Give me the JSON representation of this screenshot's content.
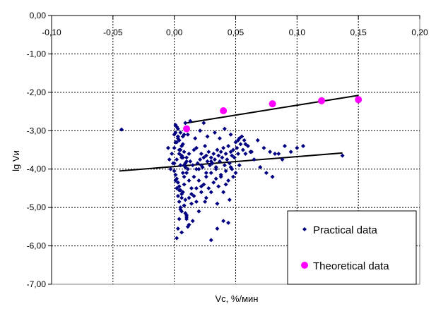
{
  "chart_data": {
    "type": "scatter",
    "xlabel": "Vc, %/мин",
    "ylabel": "lg Vи",
    "xlim": [
      -0.1,
      0.2
    ],
    "ylim": [
      -7.0,
      0.0
    ],
    "x_ticks": [
      -0.1,
      -0.05,
      0.0,
      0.05,
      0.1,
      0.15,
      0.2
    ],
    "y_ticks": [
      0.0,
      -1.0,
      -2.0,
      -3.0,
      -4.0,
      -5.0,
      -6.0,
      -7.0
    ],
    "x_tick_labels": [
      "-0,10",
      "-0,05",
      "0,00",
      "0,05",
      "0,10",
      "0,15",
      "0,20"
    ],
    "y_tick_labels": [
      "0,00",
      "-1,00",
      "-2,00",
      "-3,00",
      "-4,00",
      "-5,00",
      "-6,00",
      "-7,00"
    ],
    "grid": true,
    "legend_position": "bottom-right",
    "series": [
      {
        "name": "Practical data",
        "marker": "diamond",
        "color": "#000080",
        "x": [
          -0.043,
          0.0,
          0.0,
          0.001,
          0.002,
          0.003,
          0.004,
          0.005,
          0.006,
          0.007,
          0.008,
          0.009,
          0.01,
          0.001,
          0.002,
          0.003,
          0.004,
          0.005,
          0.006,
          0.007,
          0.008,
          0.009,
          0.0,
          0.001,
          0.002,
          0.003,
          0.004,
          0.005,
          0.006,
          0.007,
          0.008,
          0.01,
          0.011,
          0.012,
          0.013,
          0.015,
          0.016,
          0.018,
          0.019,
          0.02,
          0.021,
          0.022,
          0.023,
          0.024,
          0.025,
          0.026,
          0.027,
          0.028,
          0.029,
          0.03,
          0.031,
          0.032,
          0.033,
          0.034,
          0.035,
          0.036,
          0.037,
          0.038,
          0.039,
          0.04,
          0.041,
          0.042,
          0.043,
          0.044,
          0.045,
          0.046,
          0.047,
          0.048,
          0.049,
          0.05,
          0.051,
          0.052,
          0.053,
          0.054,
          0.055,
          0.056,
          0.057,
          0.058,
          0.06,
          0.062,
          0.065,
          0.07,
          0.075,
          0.08,
          0.085,
          0.09,
          0.095,
          0.1,
          0.105,
          0.137,
          -0.005,
          -0.004,
          -0.003,
          -0.002,
          -0.001,
          0.001,
          0.002,
          0.003,
          0.004,
          0.005,
          0.006,
          0.007,
          0.008,
          0.009,
          0.01,
          0.012,
          0.014,
          0.016,
          0.018,
          0.02,
          0.022,
          0.024,
          0.026,
          0.028,
          0.03,
          0.032,
          0.034,
          0.036,
          0.038,
          0.04,
          0.042,
          0.044,
          0.046,
          0.048,
          0.05,
          0.002,
          0.003,
          0.004,
          0.005,
          0.006,
          0.008,
          0.01,
          0.012,
          0.015,
          0.02,
          0.025,
          0.03,
          0.035,
          0.04,
          0.045,
          0.001,
          0.003,
          0.005,
          0.007,
          0.009,
          0.011,
          0.013,
          0.017,
          0.021,
          0.024,
          0.027,
          0.033,
          0.037,
          0.041,
          0.046,
          0.052,
          0.058,
          0.063,
          0.068,
          0.073,
          0.078,
          0.082,
          0.088,
          0.0,
          0.002,
          0.004,
          0.006,
          0.008,
          0.01,
          0.012,
          0.014,
          0.016,
          0.018,
          0.022,
          0.026,
          0.03,
          0.034,
          0.038,
          0.042,
          0.047,
          0.053,
          0.004,
          0.006,
          0.008,
          0.009,
          0.01,
          0.011,
          0.014,
          0.018,
          0.022,
          0.026,
          0.03,
          0.035,
          0.044
        ],
        "y": [
          -2.97,
          -3.45,
          -3.85,
          -3.3,
          -3.75,
          -3.2,
          -3.6,
          -3.9,
          -3.4,
          -3.7,
          -3.55,
          -3.95,
          -3.8,
          -3.05,
          -2.9,
          -3.15,
          -3.25,
          -3.5,
          -3.65,
          -3.35,
          -3.1,
          -3.85,
          -4.05,
          -4.15,
          -4.25,
          -4.35,
          -4.45,
          -4.55,
          -4.65,
          -4.1,
          -4.2,
          -3.7,
          -4.0,
          -3.6,
          -3.8,
          -3.9,
          -3.5,
          -3.45,
          -3.85,
          -4.0,
          -3.75,
          -3.6,
          -3.95,
          -3.7,
          -3.4,
          -3.65,
          -3.8,
          -3.55,
          -3.9,
          -3.7,
          -3.85,
          -3.6,
          -3.75,
          -3.95,
          -3.5,
          -3.65,
          -3.8,
          -3.55,
          -3.7,
          -3.45,
          -3.9,
          -3.6,
          -3.75,
          -3.4,
          -3.85,
          -3.55,
          -3.65,
          -3.5,
          -3.7,
          -3.3,
          -3.45,
          -3.6,
          -3.2,
          -3.35,
          -3.15,
          -3.5,
          -3.25,
          -3.6,
          -3.4,
          -3.55,
          -3.75,
          -3.95,
          -4.1,
          -4.2,
          -3.6,
          -3.4,
          -3.55,
          -3.45,
          -3.4,
          -3.65,
          -3.45,
          -3.75,
          -4.0,
          -3.6,
          -3.85,
          -4.3,
          -4.5,
          -4.7,
          -4.85,
          -5.0,
          -5.1,
          -4.6,
          -4.4,
          -4.8,
          -5.2,
          -5.45,
          -4.9,
          -4.7,
          -4.5,
          -4.3,
          -4.6,
          -4.4,
          -4.2,
          -4.5,
          -4.1,
          -4.35,
          -4.25,
          -4.45,
          -4.15,
          -4.6,
          -4.05,
          -4.3,
          -3.95,
          -4.2,
          -4.1,
          -5.8,
          -5.55,
          -5.3,
          -5.05,
          -5.65,
          -4.95,
          -5.25,
          -4.75,
          -5.35,
          -5.1,
          -4.85,
          -5.85,
          -5.55,
          -5.35,
          -4.8,
          -2.85,
          -2.95,
          -3.05,
          -3.15,
          -2.8,
          -3.1,
          -2.75,
          -3.2,
          -3.0,
          -2.8,
          -3.15,
          -3.05,
          -3.2,
          -2.95,
          -3.1,
          -3.25,
          -3.35,
          -3.55,
          -3.25,
          -3.45,
          -3.55,
          -3.6,
          -3.75,
          -3.1,
          -3.3,
          -3.5,
          -3.7,
          -3.9,
          -4.1,
          -4.3,
          -4.5,
          -4.2,
          -4.0,
          -3.9,
          -4.1,
          -3.8,
          -4.0,
          -4.2,
          -4.4,
          -4.0,
          -3.9,
          -4.55,
          -4.75,
          -4.95,
          -5.15,
          -5.3,
          -5.5,
          -4.65,
          -4.85,
          -4.45,
          -4.75,
          -4.6,
          -4.9,
          -5.4
        ]
      },
      {
        "name": "Theoretical data",
        "marker": "circle",
        "color": "#ff00ff",
        "x": [
          0.01,
          0.04,
          0.08,
          0.12,
          0.15
        ],
        "y": [
          -2.95,
          -2.48,
          -2.3,
          -2.22,
          -2.19
        ]
      }
    ],
    "trendlines": [
      {
        "name": "",
        "x": [
          -0.045,
          0.137
        ],
        "y": [
          -4.05,
          -3.58
        ],
        "color": "#000000"
      },
      {
        "name": "",
        "x": [
          0.01,
          0.15
        ],
        "y": [
          -2.8,
          -2.08
        ],
        "color": "#000000"
      }
    ]
  }
}
